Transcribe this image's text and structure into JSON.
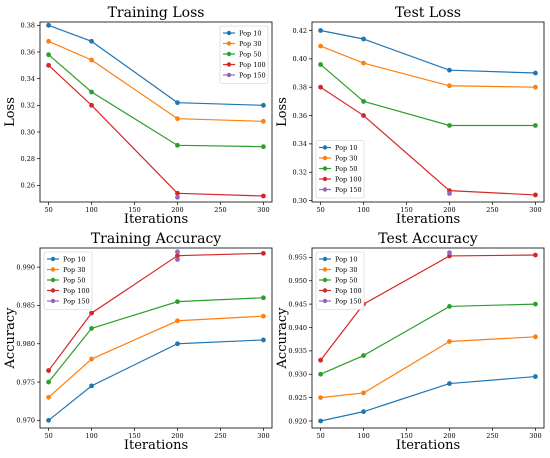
{
  "colors": {
    "Pop 10": "#1f77b4",
    "Pop 30": "#ff7f0e",
    "Pop 50": "#2ca02c",
    "Pop 100": "#d62728",
    "Pop 150": "#9467bd"
  },
  "chart_data": [
    {
      "type": "line",
      "title": "Training Loss",
      "xlabel": "Iterations",
      "ylabel": "Loss",
      "x": [
        50,
        100,
        200,
        300
      ],
      "xticks": [
        50,
        100,
        150,
        200,
        250,
        300
      ],
      "xlim": [
        40,
        310
      ],
      "yticks": [
        0.26,
        0.28,
        0.3,
        0.32,
        0.34,
        0.36,
        0.38
      ],
      "ytick_labels": [
        "0.26",
        "0.28",
        "0.30",
        "0.32",
        "0.34",
        "0.36",
        "0.38"
      ],
      "ylim": [
        0.2475,
        0.3825
      ],
      "legend": "top-right",
      "series": [
        {
          "name": "Pop 10",
          "values": [
            0.38,
            0.368,
            0.322,
            0.32
          ]
        },
        {
          "name": "Pop 30",
          "values": [
            0.368,
            0.354,
            0.31,
            0.308
          ]
        },
        {
          "name": "Pop 50",
          "values": [
            0.358,
            0.33,
            0.29,
            0.289
          ]
        },
        {
          "name": "Pop 100",
          "values": [
            0.35,
            0.32,
            0.254,
            0.252
          ]
        },
        {
          "name": "Pop 150",
          "points": [
            [
              200,
              0.251
            ]
          ]
        }
      ]
    },
    {
      "type": "line",
      "title": "Test Loss",
      "xlabel": "Iterations",
      "ylabel": "Loss",
      "x": [
        50,
        100,
        200,
        300
      ],
      "xticks": [
        50,
        100,
        150,
        200,
        250,
        300
      ],
      "xlim": [
        40,
        310
      ],
      "yticks": [
        0.3,
        0.32,
        0.34,
        0.36,
        0.38,
        0.4,
        0.42
      ],
      "ytick_labels": [
        "0.30",
        "0.32",
        "0.34",
        "0.36",
        "0.38",
        "0.40",
        "0.42"
      ],
      "ylim": [
        0.299,
        0.426
      ],
      "legend": "bottom-left",
      "series": [
        {
          "name": "Pop 10",
          "values": [
            0.42,
            0.414,
            0.392,
            0.39
          ]
        },
        {
          "name": "Pop 30",
          "values": [
            0.409,
            0.397,
            0.381,
            0.38
          ]
        },
        {
          "name": "Pop 50",
          "values": [
            0.396,
            0.37,
            0.353,
            0.353
          ]
        },
        {
          "name": "Pop 100",
          "values": [
            0.38,
            0.36,
            0.307,
            0.304
          ]
        },
        {
          "name": "Pop 150",
          "points": [
            [
              200,
              0.305
            ]
          ]
        }
      ]
    },
    {
      "type": "line",
      "title": "Training Accuracy",
      "xlabel": "Iterations",
      "ylabel": "Accuracy",
      "x": [
        50,
        100,
        200,
        300
      ],
      "xticks": [
        50,
        100,
        150,
        200,
        250,
        300
      ],
      "xlim": [
        40,
        310
      ],
      "yticks": [
        0.97,
        0.975,
        0.98,
        0.985,
        0.99
      ],
      "ytick_labels": [
        "0.970",
        "0.975",
        "0.980",
        "0.985",
        "0.990"
      ],
      "ylim": [
        0.969,
        0.9925
      ],
      "legend": "top-left",
      "series": [
        {
          "name": "Pop 10",
          "values": [
            0.97,
            0.9745,
            0.98,
            0.9805
          ]
        },
        {
          "name": "Pop 30",
          "values": [
            0.973,
            0.978,
            0.983,
            0.9836
          ]
        },
        {
          "name": "Pop 50",
          "values": [
            0.975,
            0.982,
            0.9855,
            0.986
          ]
        },
        {
          "name": "Pop 100",
          "values": [
            0.9765,
            0.984,
            0.9915,
            0.9918
          ]
        },
        {
          "name": "Pop 150",
          "points": [
            [
              200,
              0.992
            ],
            [
              200,
              0.991
            ]
          ]
        }
      ]
    },
    {
      "type": "line",
      "title": "Test Accuracy",
      "xlabel": "Iterations",
      "ylabel": "Accuracy",
      "x": [
        50,
        100,
        200,
        300
      ],
      "xticks": [
        50,
        100,
        150,
        200,
        250,
        300
      ],
      "xlim": [
        40,
        310
      ],
      "yticks": [
        0.92,
        0.925,
        0.93,
        0.935,
        0.94,
        0.945,
        0.95,
        0.955
      ],
      "ytick_labels": [
        "0.920",
        "0.925",
        "0.930",
        "0.935",
        "0.940",
        "0.945",
        "0.950",
        "0.955"
      ],
      "ylim": [
        0.9185,
        0.957
      ],
      "legend": "top-left",
      "series": [
        {
          "name": "Pop 10",
          "values": [
            0.92,
            0.922,
            0.928,
            0.9295
          ]
        },
        {
          "name": "Pop 30",
          "values": [
            0.925,
            0.926,
            0.937,
            0.938
          ]
        },
        {
          "name": "Pop 50",
          "values": [
            0.93,
            0.934,
            0.9445,
            0.945
          ]
        },
        {
          "name": "Pop 100",
          "values": [
            0.933,
            0.945,
            0.9553,
            0.9555
          ]
        },
        {
          "name": "Pop 150",
          "points": [
            [
              200,
              0.956
            ]
          ]
        }
      ]
    }
  ]
}
